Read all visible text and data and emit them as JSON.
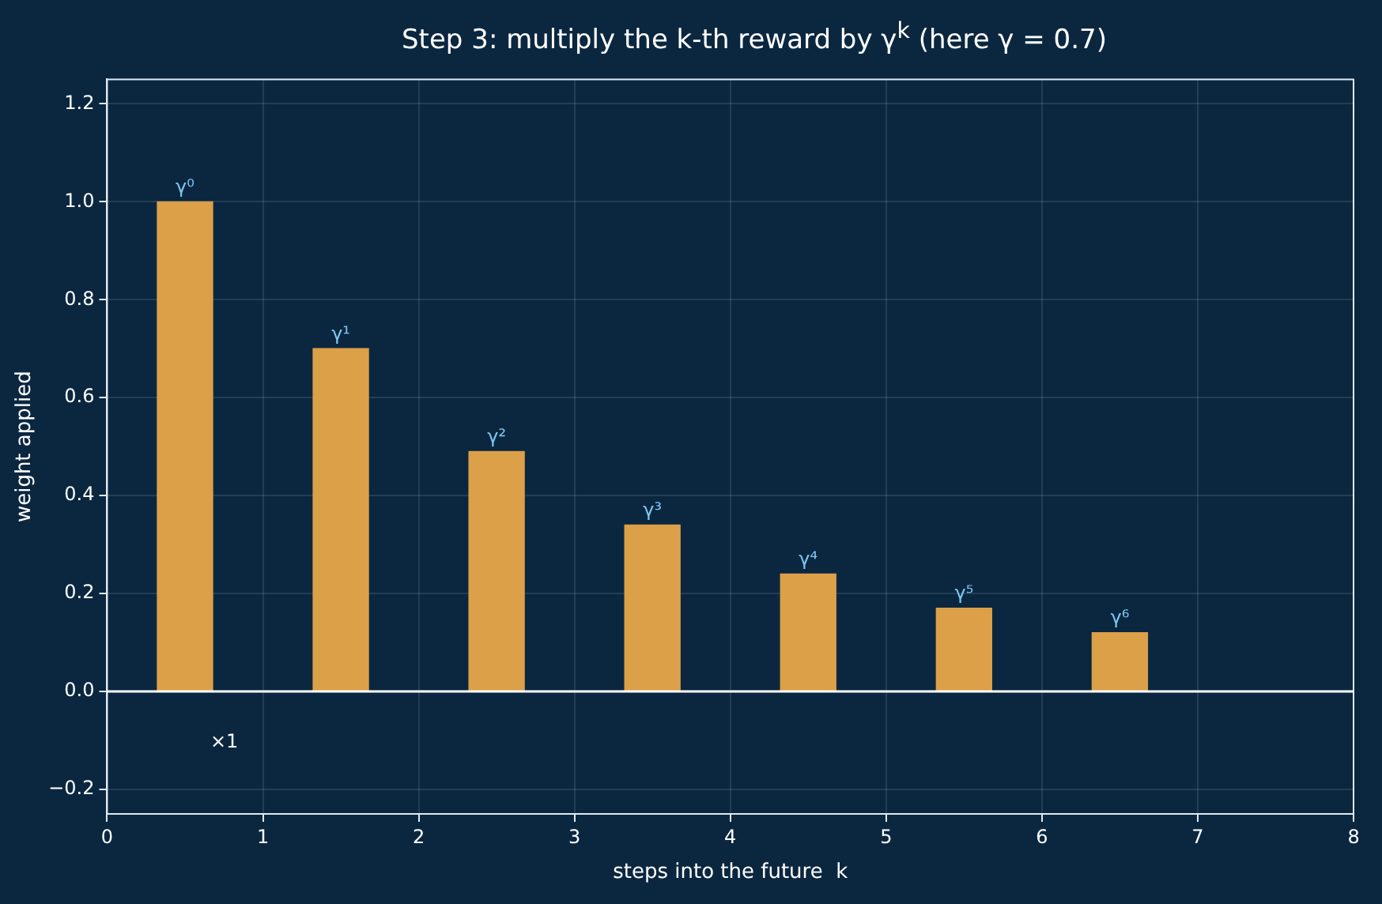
{
  "chart_data": {
    "type": "bar",
    "title": "Step 3: multiply the k-th reward by γ$^{k}$ (here γ = 0.7)",
    "xlabel": "steps into the future  k",
    "ylabel": "weight applied",
    "x": [
      0.5,
      1.5,
      2.5,
      3.5,
      4.5,
      5.5,
      6.5
    ],
    "values": [
      1,
      0.7,
      0.49,
      0.34,
      0.24,
      0.17,
      0.12
    ],
    "color": "#dba048",
    "value_labels": [
      "γ⁰",
      "γ¹",
      "γ²",
      "γ³",
      "γ⁴",
      "γ⁵",
      "γ⁶"
    ],
    "xlim": [
      0,
      8
    ],
    "xticks": [
      0,
      1,
      2,
      3,
      4,
      5,
      6,
      7,
      8
    ],
    "ylim": [
      -0.25,
      1.25
    ],
    "yticks": [
      {
        "value": -0.2,
        "label": "−0.2"
      },
      {
        "value": 0,
        "label": "0.0"
      },
      0.2,
      0.4,
      0.6,
      0.8,
      {
        "value": 1,
        "label": "1.0"
      },
      1.2
    ],
    "ref_lines": [
      {
        "axis": "y",
        "value": 0,
        "color": "#ffffff"
      }
    ],
    "annotations": [
      "×1"
    ],
    "grid": true,
    "legend": false
  }
}
